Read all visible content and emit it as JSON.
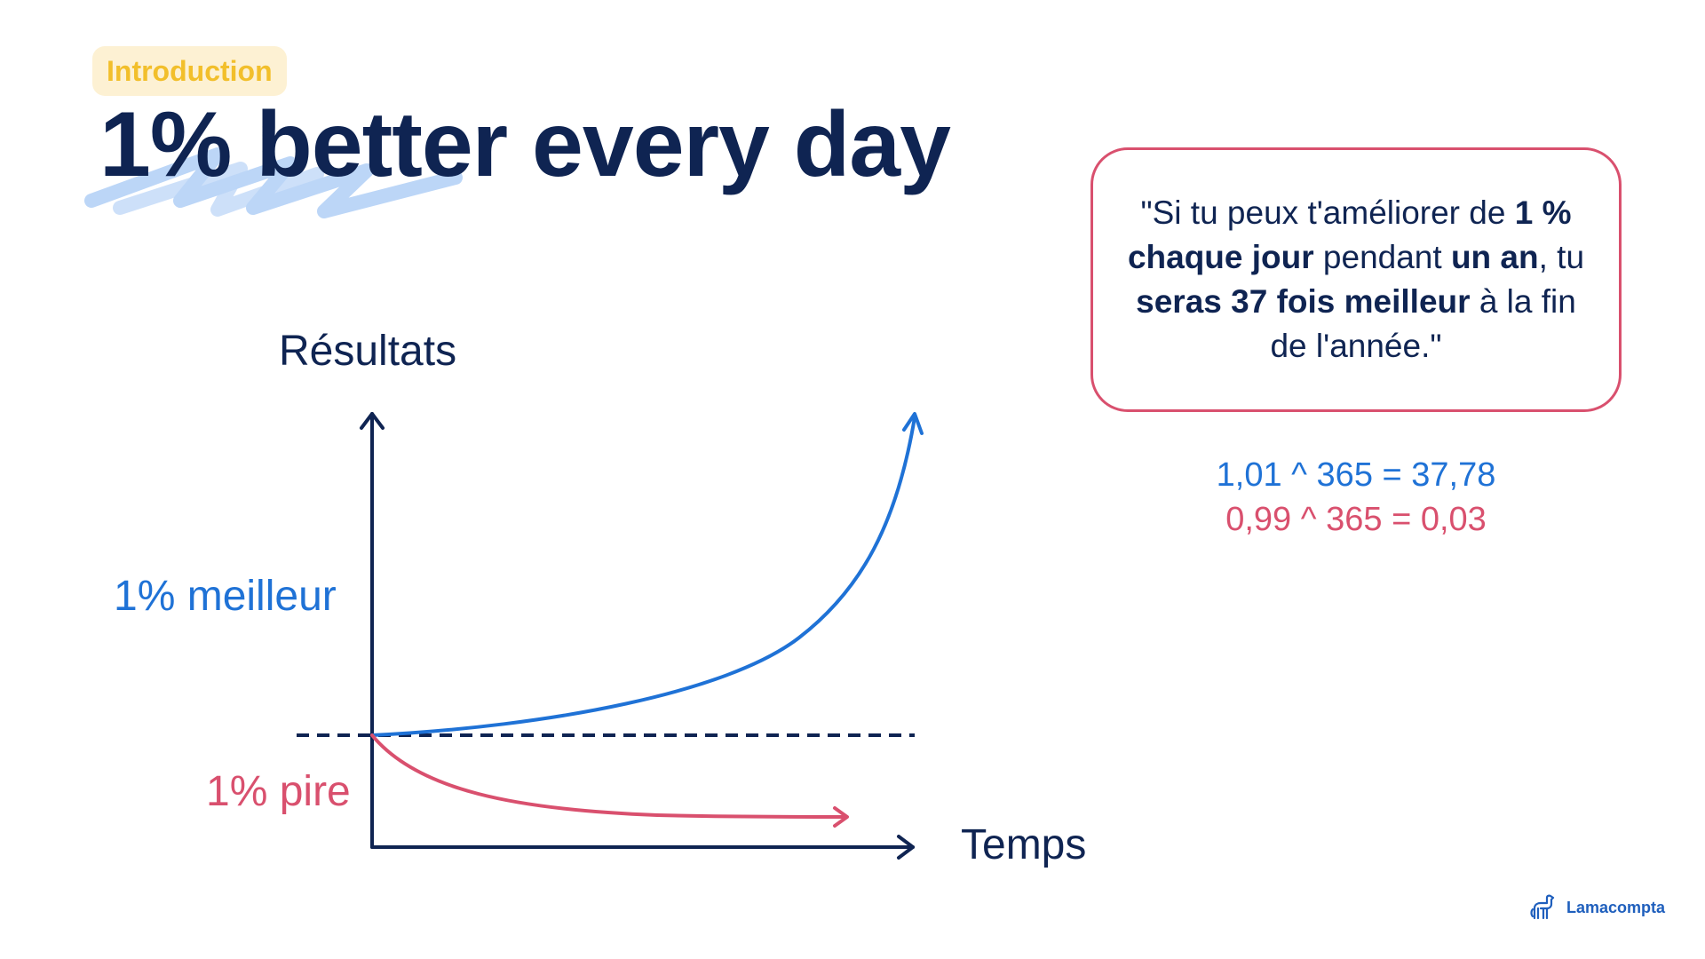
{
  "header": {
    "tag": "Introduction",
    "title": "1% better every day"
  },
  "diagram": {
    "y_axis_label": "Résultats",
    "x_axis_label": "Temps",
    "better_label": "1% meilleur",
    "worse_label": "1% pire",
    "colors": {
      "axis": "#0f2452",
      "better": "#1f72d6",
      "worse": "#d9506e"
    }
  },
  "quote": {
    "parts": [
      {
        "text": "\"Si tu peux t'améliorer de ",
        "bold": false
      },
      {
        "text": "1 % chaque jour",
        "bold": true
      },
      {
        "text": " pendant ",
        "bold": false
      },
      {
        "text": "un an",
        "bold": true
      },
      {
        "text": ", tu ",
        "bold": false
      },
      {
        "text": "seras 37 fois meilleur",
        "bold": true
      },
      {
        "text": " à la fin de l'année.\"",
        "bold": false
      }
    ]
  },
  "equations": {
    "improve": "1,01 ^ 365 = 37,78",
    "decline": "0,99 ^ 365 = 0,03"
  },
  "brand": {
    "name": "Lamacompta",
    "icon": "llama-icon"
  },
  "colors": {
    "navy": "#0f2452",
    "blue": "#1f72d6",
    "pink": "#d9506e",
    "tag_bg": "#fdf1d3",
    "tag_text": "#f2bf2b",
    "brush": "#bcd6f7"
  }
}
